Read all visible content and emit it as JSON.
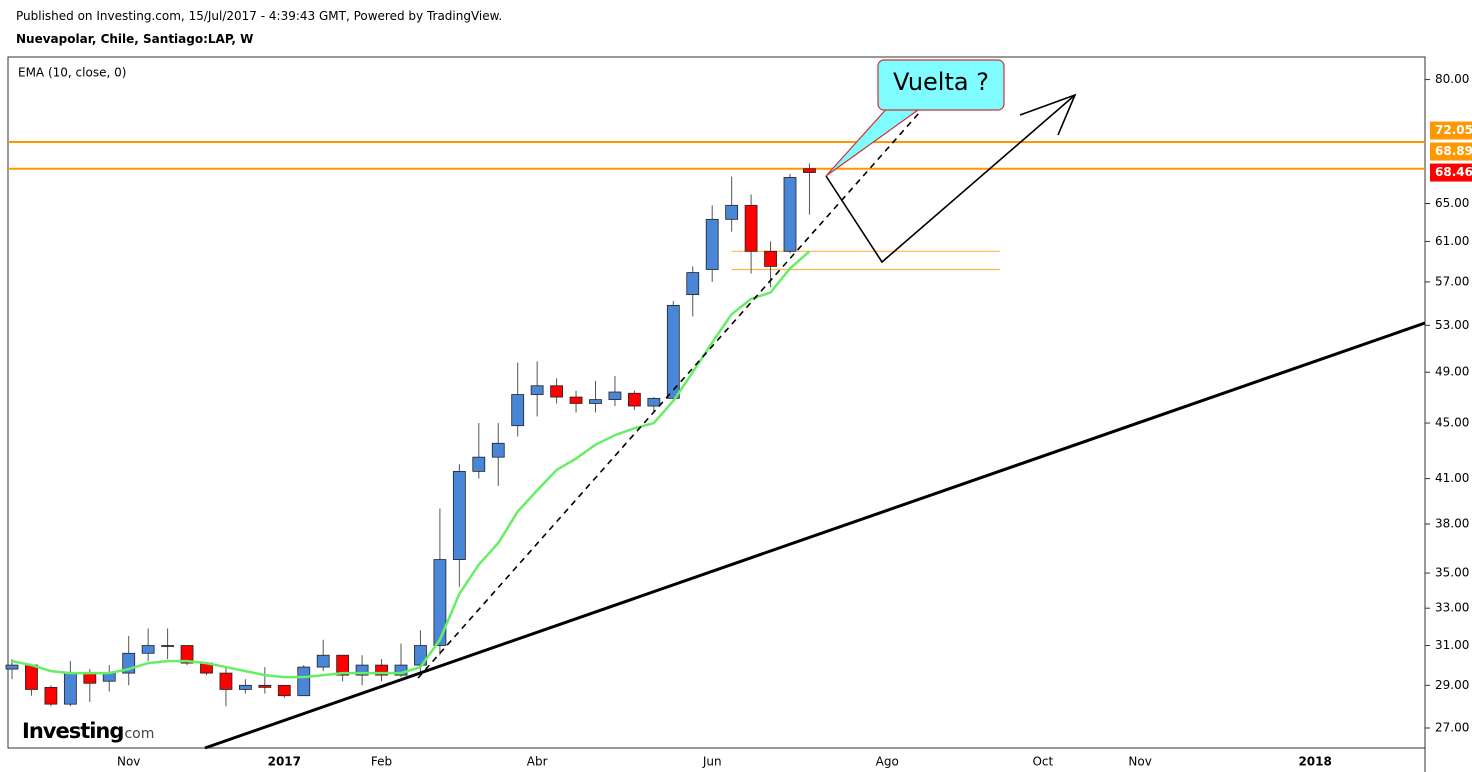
{
  "header": {
    "published": "Published on Investing.com, 15/Jul/2017 - 4:39:43 GMT, Powered by TradingView.",
    "symbol": "Nuevapolar, Chile, Santiago:LAP, W"
  },
  "logo": {
    "brand": "Investing",
    "suffix": ".com"
  },
  "chart_data": {
    "type": "candlestick",
    "annotation": "Vuelta ?",
    "up_color": "#4a86d8",
    "down_color": "#ff0000",
    "log_scale": true,
    "categories": [
      null,
      null,
      null,
      null,
      null,
      null,
      "Nov",
      null,
      null,
      null,
      null,
      null,
      null,
      null,
      "2017",
      null,
      null,
      null,
      null,
      "Feb",
      null,
      null,
      null,
      null,
      null,
      null,
      null,
      "Abr",
      null,
      null,
      null,
      null,
      null,
      null,
      null,
      null,
      "Jun",
      null,
      null,
      null,
      null,
      null,
      null,
      null,
      null,
      "Ago",
      null,
      null,
      null,
      null,
      null,
      null,
      null,
      "Oct",
      null,
      null,
      null,
      null,
      "Nov",
      null,
      null,
      null,
      null,
      null,
      null,
      null,
      null,
      "2018",
      null,
      null,
      null,
      null,
      null
    ],
    "open": [
      29.8,
      30.0,
      28.9,
      28.1,
      29.6,
      29.2,
      29.6,
      30.6,
      31.0,
      31.0,
      30.1,
      29.6,
      28.8,
      29.0,
      29.0,
      28.5,
      29.9,
      30.5,
      29.5,
      30.0,
      29.5,
      30.0,
      31.0,
      35.8,
      41.5,
      42.5,
      44.8,
      47.2,
      47.9,
      47.0,
      46.5,
      46.8,
      47.3,
      46.3,
      46.9,
      55.8,
      58.2,
      63.3,
      64.8,
      60.0,
      60.0,
      68.9,
      null,
      null,
      null,
      null,
      null,
      null,
      null,
      null,
      null,
      null,
      null,
      null,
      null,
      null,
      null,
      null,
      null,
      null,
      null,
      null,
      null,
      null,
      null,
      null,
      null,
      null,
      null,
      null,
      null,
      null,
      null
    ],
    "high": [
      30.3,
      30.0,
      29.0,
      30.2,
      29.8,
      30.0,
      31.5,
      31.9,
      31.9,
      31.0,
      30.1,
      29.9,
      29.3,
      29.9,
      29.0,
      30.0,
      31.3,
      30.5,
      30.5,
      30.3,
      31.1,
      31.8,
      39.0,
      42.0,
      45.0,
      45.0,
      49.8,
      49.9,
      48.5,
      47.5,
      48.3,
      48.7,
      47.5,
      47.0,
      55.2,
      58.5,
      64.8,
      68.0,
      66.0,
      61.0,
      68.3,
      69.5,
      null,
      null,
      null,
      null,
      null,
      null,
      null,
      null,
      null,
      null,
      null,
      null,
      null,
      null,
      null,
      null,
      null,
      null,
      null,
      null,
      null,
      null,
      null,
      null,
      null,
      null,
      null,
      null,
      null,
      null,
      null
    ],
    "low": [
      29.3,
      28.5,
      28.0,
      28.0,
      28.2,
      28.7,
      29.0,
      30.2,
      30.3,
      30.0,
      29.5,
      28.0,
      28.6,
      28.6,
      28.4,
      28.5,
      29.7,
      29.2,
      29.0,
      29.2,
      29.4,
      29.5,
      30.5,
      34.2,
      41.0,
      40.5,
      44.0,
      45.5,
      46.5,
      45.8,
      45.8,
      46.3,
      46.0,
      45.9,
      46.6,
      53.8,
      57.0,
      62.0,
      57.8,
      56.5,
      59.8,
      63.8,
      null,
      null,
      null,
      null,
      null,
      null,
      null,
      null,
      null,
      null,
      null,
      null,
      null,
      null,
      null,
      null,
      null,
      null,
      null,
      null,
      null,
      null,
      null,
      null,
      null,
      null,
      null,
      null,
      null,
      null,
      null
    ],
    "close": [
      30.0,
      28.8,
      28.1,
      29.6,
      29.1,
      29.6,
      30.6,
      31.0,
      31.0,
      30.1,
      29.6,
      28.8,
      29.0,
      28.9,
      28.5,
      29.9,
      30.5,
      29.5,
      30.0,
      29.5,
      30.0,
      31.0,
      35.8,
      41.5,
      42.5,
      43.5,
      47.2,
      47.9,
      47.0,
      46.5,
      46.8,
      47.4,
      46.3,
      46.9,
      54.8,
      57.9,
      63.3,
      64.8,
      60.0,
      58.5,
      67.9,
      68.46,
      null,
      null,
      null,
      null,
      null,
      null,
      null,
      null,
      null,
      null,
      null,
      null,
      null,
      null,
      null,
      null,
      null,
      null,
      null,
      null,
      null,
      null,
      null,
      null,
      null,
      null,
      null,
      null,
      null,
      null,
      null
    ],
    "ema": {
      "name": "EMA (10, close, 0)",
      "color": "#66ee66",
      "values": [
        30.2,
        30.0,
        29.7,
        29.6,
        29.6,
        29.6,
        29.8,
        30.1,
        30.2,
        30.2,
        30.1,
        29.9,
        29.7,
        29.5,
        29.4,
        29.4,
        29.5,
        29.6,
        29.6,
        29.6,
        29.6,
        29.9,
        31.3,
        33.8,
        35.5,
        36.8,
        38.8,
        40.2,
        41.6,
        42.4,
        43.4,
        44.1,
        44.6,
        45.0,
        46.7,
        49.0,
        51.5,
        54.0,
        55.4,
        56.0,
        58.3,
        60.0,
        null,
        null,
        null,
        null,
        null,
        null,
        null,
        null,
        null,
        null,
        null,
        null,
        null,
        null,
        null,
        null,
        null,
        null,
        null,
        null,
        null,
        null,
        null,
        null,
        null,
        null,
        null,
        null,
        null,
        null,
        null
      ]
    },
    "levels": [
      {
        "value": 72.05,
        "color": "#ff9800"
      },
      {
        "value": 68.89,
        "color": "#ff9800"
      }
    ],
    "minor_levels": [
      {
        "value": 60.0,
        "color": "#ffb74d"
      },
      {
        "value": 58.2,
        "color": "#ffb74d"
      }
    ],
    "ylim": [
      26.11,
      83.08
    ],
    "yticks": [
      {
        "value": 27,
        "label": "27.00"
      },
      {
        "value": 29,
        "label": "29.00"
      },
      {
        "value": 31,
        "label": "31.00"
      },
      {
        "value": 33,
        "label": "33.00"
      },
      {
        "value": 35,
        "label": "35.00"
      },
      {
        "value": 38,
        "label": "38.00"
      },
      {
        "value": 41,
        "label": "41.00"
      },
      {
        "value": 45,
        "label": "45.00"
      },
      {
        "value": 49,
        "label": "49.00"
      },
      {
        "value": 53,
        "label": "53.00"
      },
      {
        "value": 57,
        "label": "57.00"
      },
      {
        "value": 61,
        "label": "61.00"
      },
      {
        "value": 65,
        "label": "65.00"
      },
      {
        "value": 80,
        "label": "80.00"
      }
    ]
  }
}
